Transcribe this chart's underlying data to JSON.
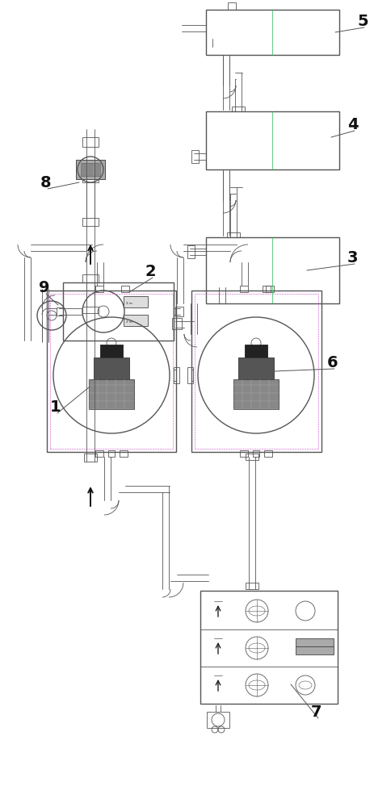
{
  "bg": "#ffffff",
  "C": "#555555",
  "CG": "#22bb55",
  "CP": "#cc44cc",
  "CC": "#33aaaa",
  "lw_main": 1.0,
  "lw_thin": 0.6,
  "lw_pipe": 0.8,
  "boxes": {
    "B5": [
      255,
      932,
      420,
      988
    ],
    "B4": [
      255,
      790,
      420,
      862
    ],
    "B3": [
      255,
      624,
      420,
      706
    ],
    "B2": [
      78,
      578,
      215,
      650
    ],
    "B1": [
      58,
      440,
      218,
      640
    ],
    "B6": [
      237,
      440,
      398,
      640
    ],
    "B7": [
      248,
      128,
      418,
      268
    ],
    "B8_area": [
      88,
      720,
      140,
      820
    ]
  },
  "labels": [
    [
      "1",
      62,
      490,
      110,
      520
    ],
    [
      "2",
      180,
      658,
      160,
      638
    ],
    [
      "3",
      430,
      675,
      380,
      665
    ],
    [
      "4",
      430,
      840,
      410,
      830
    ],
    [
      "5",
      442,
      968,
      415,
      960
    ],
    [
      "6",
      405,
      545,
      340,
      540
    ],
    [
      "7",
      385,
      112,
      360,
      152
    ],
    [
      "8",
      50,
      768,
      98,
      774
    ],
    [
      "9",
      48,
      638,
      72,
      622
    ]
  ]
}
